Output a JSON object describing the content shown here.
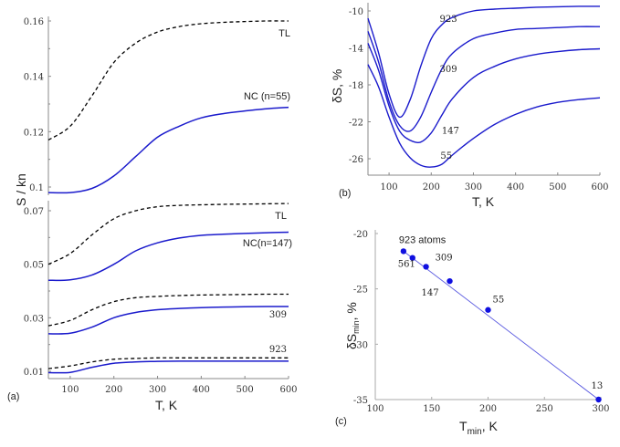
{
  "chart_data": [
    {
      "id": "a",
      "type": "line",
      "panel_label": "(a)",
      "xlabel": "T, K",
      "ylabel": "S / kn",
      "xlim": [
        50,
        600
      ],
      "xticks": [
        100,
        200,
        300,
        400,
        500,
        600
      ],
      "y_axis_broken": true,
      "yticks_upper": [
        "0.16",
        "0.14",
        "0.12",
        "0.1"
      ],
      "yticks_lower": [
        "0.07",
        "0.05",
        "0.03",
        "0.01"
      ],
      "ylim_upper": [
        0.097,
        0.162
      ],
      "ylim_lower": [
        0.008,
        0.073
      ],
      "x": [
        50,
        100,
        150,
        200,
        250,
        300,
        350,
        400,
        450,
        500,
        550,
        600
      ],
      "series": [
        {
          "name": "TL (n=55)",
          "segment": "upper",
          "style": "dashed",
          "color": "#000000",
          "label": "TL",
          "values": [
            0.117,
            0.122,
            0.133,
            0.145,
            0.152,
            0.156,
            0.158,
            0.159,
            0.1595,
            0.1598,
            0.16,
            0.16
          ]
        },
        {
          "name": "NC (n=55)",
          "segment": "upper",
          "style": "solid",
          "color": "#1a1acc",
          "label": "NC (n=55)",
          "values": [
            0.098,
            0.098,
            0.0995,
            0.104,
            0.111,
            0.118,
            0.122,
            0.125,
            0.1265,
            0.1275,
            0.1283,
            0.1288
          ]
        },
        {
          "name": "TL (n=147)",
          "segment": "lower",
          "style": "dashed",
          "color": "#000000",
          "label": "TL",
          "values": [
            0.05,
            0.054,
            0.061,
            0.067,
            0.07,
            0.0715,
            0.072,
            0.0722,
            0.0724,
            0.0725,
            0.0726,
            0.0727
          ]
        },
        {
          "name": "NC (n=147)",
          "segment": "lower",
          "style": "solid",
          "color": "#1a1acc",
          "label": "NC(n=147)",
          "values": [
            0.044,
            0.0442,
            0.046,
            0.05,
            0.055,
            0.058,
            0.0598,
            0.0608,
            0.0612,
            0.0615,
            0.0618,
            0.062
          ]
        },
        {
          "name": "TL (n=309)",
          "segment": "lower",
          "style": "dashed",
          "color": "#000000",
          "label": "",
          "values": [
            0.027,
            0.029,
            0.033,
            0.036,
            0.0375,
            0.038,
            0.0383,
            0.0385,
            0.0386,
            0.0387,
            0.0388,
            0.0388
          ]
        },
        {
          "name": "NC (n=309)",
          "segment": "lower",
          "style": "solid",
          "color": "#1a1acc",
          "label": "309",
          "values": [
            0.024,
            0.0242,
            0.0265,
            0.03,
            0.032,
            0.033,
            0.0335,
            0.0338,
            0.034,
            0.0341,
            0.0342,
            0.0342
          ]
        },
        {
          "name": "TL (n=923)",
          "segment": "lower",
          "style": "dashed",
          "color": "#000000",
          "label": "923",
          "values": [
            0.011,
            0.012,
            0.0135,
            0.0145,
            0.0148,
            0.015,
            0.015,
            0.015,
            0.015,
            0.015,
            0.015,
            0.015
          ]
        },
        {
          "name": "NC (n=923)",
          "segment": "lower",
          "style": "solid",
          "color": "#1a1acc",
          "label": "",
          "values": [
            0.0095,
            0.0096,
            0.0115,
            0.013,
            0.0135,
            0.0137,
            0.0138,
            0.0138,
            0.0138,
            0.0138,
            0.0138,
            0.0138
          ]
        }
      ]
    },
    {
      "id": "b",
      "type": "line",
      "panel_label": "(b)",
      "xlabel": "T, K",
      "ylabel": "δS, %",
      "xlim": [
        50,
        600
      ],
      "ylim": [
        -28,
        -9.2
      ],
      "xticks": [
        100,
        200,
        300,
        400,
        500,
        600
      ],
      "yticks": [
        -10,
        -14,
        -18,
        -22,
        -26
      ],
      "x": [
        50,
        75,
        100,
        125,
        150,
        175,
        200,
        225,
        250,
        300,
        350,
        400,
        450,
        500,
        550,
        600
      ],
      "series": [
        {
          "name": "923",
          "color": "#1a1acc",
          "values": [
            -10.8,
            -14.5,
            -19.0,
            -21.5,
            -19.6,
            -16.0,
            -13.0,
            -11.5,
            -10.7,
            -10.0,
            -9.8,
            -9.7,
            -9.6,
            -9.55,
            -9.5,
            -9.5
          ]
        },
        {
          "name": "309",
          "color": "#1a1acc",
          "values": [
            -12.2,
            -15.5,
            -19.8,
            -22.4,
            -23.0,
            -21.5,
            -18.8,
            -16.3,
            -14.6,
            -13.0,
            -12.4,
            -12.0,
            -11.9,
            -11.8,
            -11.7,
            -11.7
          ]
        },
        {
          "name": "147",
          "color": "#1a1acc",
          "values": [
            -13.5,
            -16.4,
            -20.3,
            -23.0,
            -24.0,
            -24.2,
            -23.2,
            -21.3,
            -19.5,
            -17.2,
            -16.0,
            -15.2,
            -14.7,
            -14.4,
            -14.2,
            -14.1
          ]
        },
        {
          "name": "55",
          "color": "#1a1acc",
          "values": [
            -15.8,
            -18.2,
            -21.5,
            -24.3,
            -25.9,
            -26.7,
            -26.9,
            -26.6,
            -25.6,
            -23.8,
            -22.3,
            -21.2,
            -20.4,
            -19.9,
            -19.6,
            -19.4
          ]
        }
      ],
      "annotations": [
        {
          "text": "923",
          "x": 220,
          "y": -11.2
        },
        {
          "text": "309",
          "x": 220,
          "y": -16.6
        },
        {
          "text": "147",
          "x": 225,
          "y": -23.3
        },
        {
          "text": "55",
          "x": 222,
          "y": -26.0
        }
      ]
    },
    {
      "id": "c",
      "type": "scatter",
      "panel_label": "(c)",
      "xlabel": "T_min, K",
      "ylabel": "δS_min, %",
      "xlim": [
        100,
        300
      ],
      "ylim": [
        -35,
        -20
      ],
      "xticks": [
        100,
        150,
        200,
        250,
        300
      ],
      "yticks": [
        -20,
        -25,
        -30,
        -35
      ],
      "fit_line": true,
      "points": [
        {
          "label": "923 atoms",
          "x": 125,
          "y": -21.6
        },
        {
          "label": "561",
          "x": 133,
          "y": -22.2
        },
        {
          "label": "309",
          "x": 145,
          "y": -23.0
        },
        {
          "label": "147",
          "x": 166,
          "y": -24.3
        },
        {
          "label": "55",
          "x": 200,
          "y": -26.9
        },
        {
          "label": "13",
          "x": 298,
          "y": -35.0
        }
      ]
    }
  ]
}
